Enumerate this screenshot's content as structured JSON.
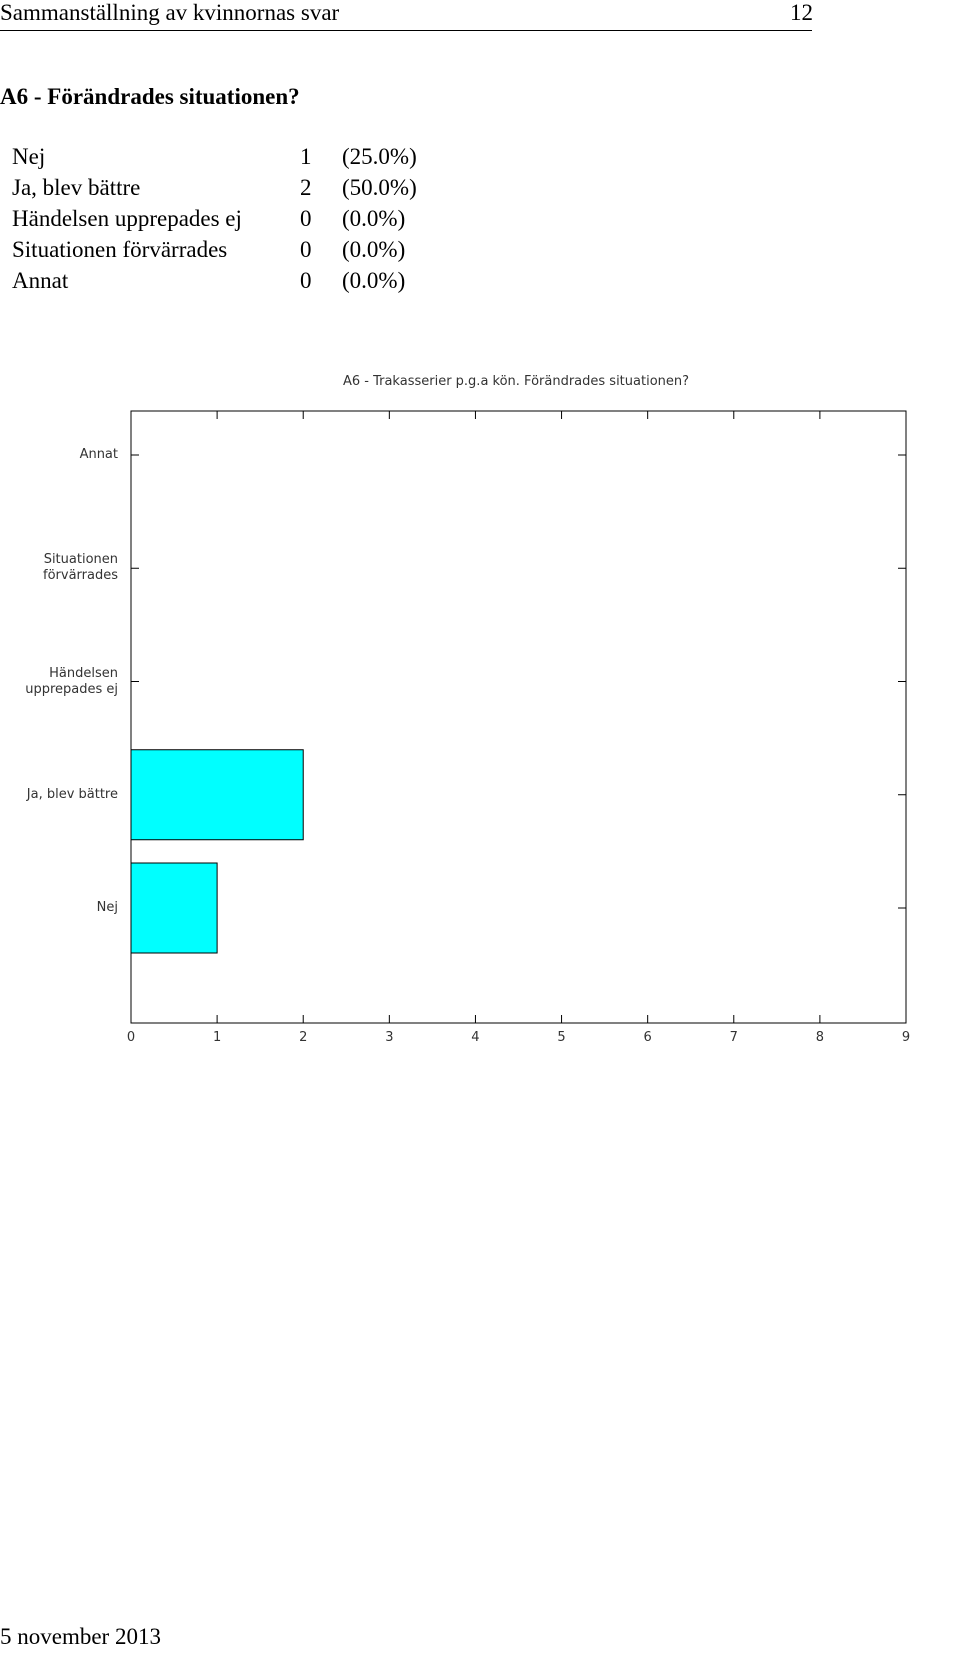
{
  "header": {
    "title": "Sammanställning av kvinnornas svar",
    "page": "12"
  },
  "section": {
    "title": "A6 - Förändrades situationen?"
  },
  "table": {
    "rows": [
      [
        "Nej",
        "1",
        "(25.0%)"
      ],
      [
        "Ja, blev bättre",
        "2",
        "(50.0%)"
      ],
      [
        "Händelsen upprepades ej",
        "0",
        "(0.0%)"
      ],
      [
        "Situationen förvärrades",
        "0",
        "(0.0%)"
      ],
      [
        "Annat",
        "0",
        "(0.0%)"
      ]
    ]
  },
  "chart_data": {
    "type": "barh",
    "title": "A6 - Trakasserier p.g.a kön. Förändrades situationen?",
    "categories": [
      "Nej",
      "Ja, blev bättre",
      "Händelsen\nupprepades ej",
      "Situationen\nförvärrades",
      "Annat"
    ],
    "values": [
      1,
      2,
      0,
      0,
      0
    ],
    "color": "#00ffff",
    "xlim": [
      0,
      9
    ],
    "xticks": [
      0,
      1,
      2,
      3,
      4,
      5,
      6,
      7,
      8,
      9
    ]
  },
  "footer": {
    "date": "5 november 2013"
  }
}
